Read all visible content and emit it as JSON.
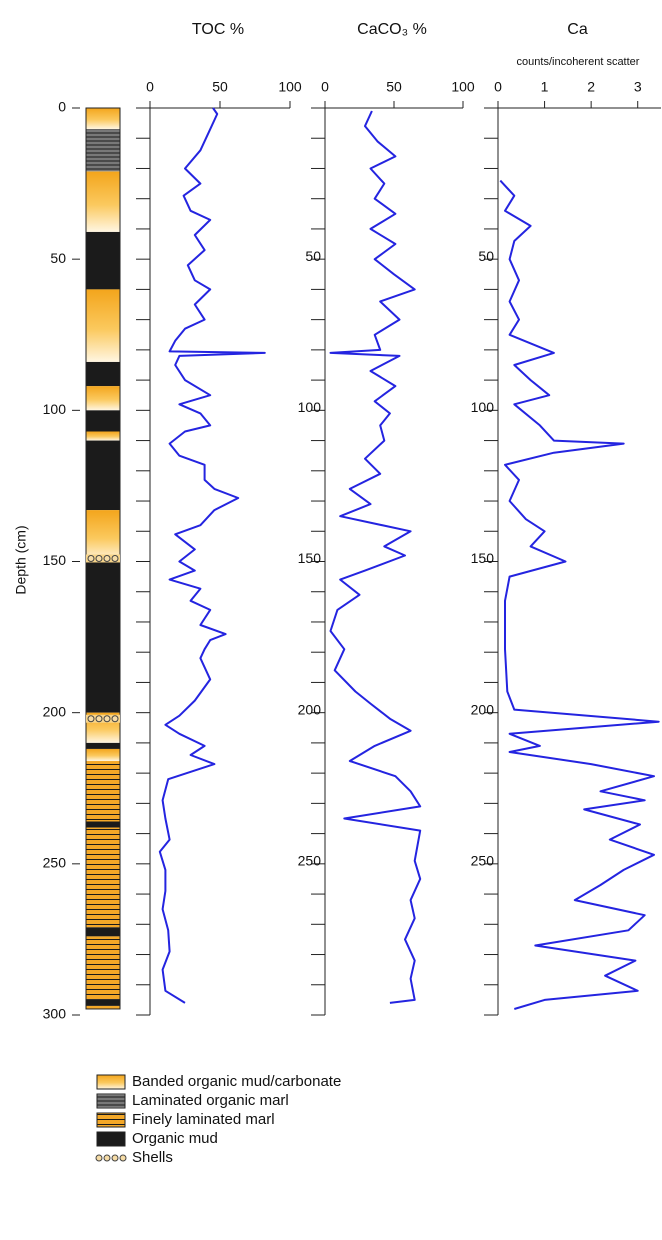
{
  "chart_data": [
    {
      "type": "lithology",
      "units": [
        {
          "top": 0,
          "base": 7,
          "facies": 0
        },
        {
          "top": 7,
          "base": 21,
          "facies": 1
        },
        {
          "top": 21,
          "base": 41,
          "facies": 0
        },
        {
          "top": 41,
          "base": 60,
          "facies": 3
        },
        {
          "top": 60,
          "base": 84,
          "facies": 0
        },
        {
          "top": 84,
          "base": 92,
          "facies": 3
        },
        {
          "top": 92,
          "base": 100,
          "facies": 0
        },
        {
          "top": 100,
          "base": 107,
          "facies": 3
        },
        {
          "top": 107,
          "base": 110,
          "facies": 0
        },
        {
          "top": 110,
          "base": 133,
          "facies": 3
        },
        {
          "top": 133,
          "base": 150,
          "facies": 0
        },
        {
          "top": 150,
          "base": 200,
          "facies": 3
        },
        {
          "top": 200,
          "base": 210,
          "facies": 0
        },
        {
          "top": 210,
          "base": 212,
          "facies": 3
        },
        {
          "top": 212,
          "base": 216,
          "facies": 0
        },
        {
          "top": 216,
          "base": 236,
          "facies": 2
        },
        {
          "top": 236,
          "base": 238,
          "facies": 3
        },
        {
          "top": 238,
          "base": 271,
          "facies": 2
        },
        {
          "top": 271,
          "base": 274,
          "facies": 3
        },
        {
          "top": 274,
          "base": 295,
          "facies": 2
        },
        {
          "top": 295,
          "base": 297,
          "facies": 3
        },
        {
          "top": 297,
          "base": 298,
          "facies": 2
        }
      ],
      "shells": [
        149,
        202
      ],
      "legend": [
        "Banded organic mud/carbonate",
        "Laminated organic marl",
        "Finely laminated marl",
        "Organic mud",
        "Shells"
      ]
    },
    {
      "type": "line",
      "title": "TOC %",
      "xlim": [
        0,
        100
      ],
      "xticks": [
        0,
        50,
        100
      ],
      "series": [
        {
          "color": "#2424e0",
          "depth": [
            0,
            2,
            7,
            14,
            20,
            25,
            29,
            34,
            37,
            42,
            47,
            52,
            57,
            60,
            65,
            70,
            73,
            77,
            80.5,
            81,
            82,
            85,
            90,
            95,
            98,
            101,
            105,
            107,
            111,
            115,
            118,
            123,
            126,
            129,
            133,
            138,
            141,
            146,
            150,
            153,
            156,
            159,
            163,
            166,
            171,
            174,
            176,
            179,
            182,
            189,
            196,
            201,
            204,
            207,
            211,
            214,
            217,
            222,
            229,
            235,
            242,
            246,
            252,
            259,
            265,
            272,
            279,
            285,
            292,
            296
          ],
          "values": [
            45,
            48,
            43,
            36,
            25,
            36,
            24,
            29,
            43,
            32,
            39,
            27,
            32,
            43,
            32,
            39,
            25,
            18,
            14,
            82,
            21,
            18,
            25,
            43,
            21,
            36,
            43,
            25,
            14,
            21,
            39,
            39,
            46,
            63,
            46,
            36,
            18,
            32,
            21,
            32,
            14,
            36,
            29,
            43,
            36,
            54,
            43,
            39,
            36,
            43,
            32,
            21,
            11,
            21,
            39,
            29,
            46,
            13,
            9,
            11,
            14,
            7,
            11,
            11,
            9,
            13,
            14,
            9,
            11,
            25
          ]
        }
      ]
    },
    {
      "type": "line",
      "title": "CaCO₃ %",
      "xlim": [
        0,
        100
      ],
      "xticks": [
        0,
        50,
        100
      ],
      "series": [
        {
          "color": "#2424e0",
          "depth": [
            1,
            6,
            11,
            16,
            20,
            25,
            30,
            35,
            40,
            45,
            50,
            55,
            60,
            64,
            70,
            75,
            80,
            81,
            82,
            87,
            92,
            97,
            101,
            105,
            110,
            116,
            121,
            126,
            131,
            135,
            140,
            145,
            148,
            153,
            156,
            161,
            166,
            173,
            179,
            186,
            193,
            197,
            202,
            206,
            211,
            216,
            221,
            226,
            231,
            235,
            239,
            249,
            255,
            262,
            268,
            275,
            282,
            288,
            295,
            296
          ],
          "values": [
            34,
            29,
            38,
            51,
            33,
            43,
            36,
            51,
            33,
            51,
            36,
            50,
            65,
            40,
            54,
            36,
            40,
            4,
            54,
            33,
            51,
            36,
            47,
            40,
            43,
            29,
            40,
            18,
            33,
            11,
            62,
            43,
            58,
            29,
            11,
            25,
            9,
            4,
            14,
            7,
            22,
            33,
            47,
            62,
            36,
            18,
            51,
            62,
            69,
            14,
            69,
            65,
            69,
            62,
            65,
            58,
            65,
            62,
            65,
            47
          ]
        }
      ]
    },
    {
      "type": "line",
      "title": "Ca",
      "subtitle": "counts/incoherent scatter",
      "xlim": [
        0,
        3.5
      ],
      "xticks": [
        0,
        1,
        2,
        3
      ],
      "series": [
        {
          "color": "#2424e0",
          "depth": [
            24,
            29,
            34,
            39,
            44,
            50,
            57,
            64,
            70,
            75,
            81,
            85,
            90,
            95,
            98,
            105,
            110,
            111,
            114,
            118,
            123,
            130,
            136,
            140,
            145,
            150,
            155,
            163,
            179,
            193,
            199,
            203,
            207,
            211,
            213,
            217,
            221,
            226,
            229,
            232,
            237,
            242,
            247,
            252,
            257,
            262,
            267,
            272,
            277,
            282,
            287,
            292,
            295,
            298
          ],
          "values": [
            0.05,
            0.35,
            0.15,
            0.7,
            0.35,
            0.25,
            0.45,
            0.25,
            0.45,
            0.25,
            1.2,
            0.35,
            0.7,
            1.1,
            0.35,
            0.9,
            1.2,
            2.7,
            1.2,
            0.15,
            0.45,
            0.25,
            0.6,
            1.0,
            0.7,
            1.45,
            0.25,
            0.15,
            0.15,
            0.2,
            0.35,
            3.45,
            0.25,
            0.9,
            0.25,
            2.0,
            3.35,
            2.2,
            3.15,
            1.85,
            3.05,
            2.4,
            3.35,
            2.7,
            2.2,
            1.65,
            3.15,
            2.8,
            0.8,
            2.95,
            2.3,
            3.0,
            1.0,
            0.35
          ]
        }
      ]
    }
  ],
  "depth_axis": {
    "label": "Depth (cm)",
    "ylim": [
      0,
      300
    ],
    "yticks": [
      0,
      50,
      100,
      150,
      200,
      250,
      300
    ],
    "minor_ticks": [
      0,
      10,
      20,
      30,
      40,
      50,
      60,
      70,
      80,
      90,
      100,
      110,
      120,
      130,
      140,
      150,
      160,
      170,
      180,
      190,
      200,
      210,
      220,
      230,
      240,
      250,
      260,
      270,
      280,
      290,
      300
    ]
  }
}
